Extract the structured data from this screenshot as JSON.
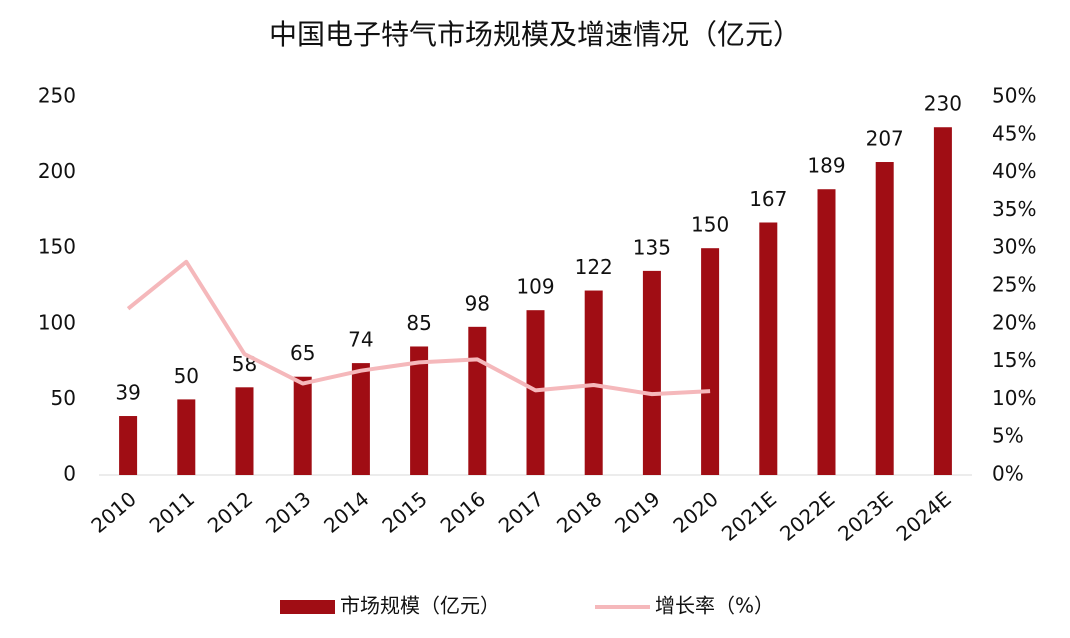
{
  "chart_data": {
    "type": "bar",
    "title": "中国电子特气市场规模及增速情况（亿元）",
    "categories": [
      "2010",
      "2011",
      "2012",
      "2013",
      "2014",
      "2015",
      "2016",
      "2017",
      "2018",
      "2019",
      "2020",
      "2021E",
      "2022E",
      "2023E",
      "2024E"
    ],
    "series": [
      {
        "name": "市场规模（亿元）",
        "type": "bar",
        "color": "#a00d14",
        "values": [
          39,
          50,
          58,
          65,
          74,
          85,
          98,
          109,
          122,
          135,
          150,
          167,
          189,
          207,
          230
        ]
      },
      {
        "name": "增长率（%）",
        "type": "line",
        "axis": "y2",
        "color": "#f5b8bb",
        "values": [
          22,
          28.2,
          16,
          12.1,
          13.8,
          14.9,
          15.3,
          11.2,
          11.9,
          10.7,
          11.1,
          null,
          null,
          null,
          null
        ]
      }
    ],
    "ylim": [
      0,
      250
    ],
    "yticks": [
      0,
      50,
      100,
      150,
      200,
      250
    ],
    "y2lim": [
      0,
      50
    ],
    "y2ticks": [
      {
        "value": 0,
        "label": "0%"
      },
      {
        "value": 5,
        "label": "5%"
      },
      {
        "value": 10,
        "label": "10%"
      },
      {
        "value": 15,
        "label": "15%"
      },
      {
        "value": 20,
        "label": "20%"
      },
      {
        "value": 25,
        "label": "25%"
      },
      {
        "value": 30,
        "label": "30%"
      },
      {
        "value": 35,
        "label": "35%"
      },
      {
        "value": 40,
        "label": "40%"
      },
      {
        "value": 45,
        "label": "45%"
      },
      {
        "value": 50,
        "label": "50%"
      }
    ],
    "grid": false,
    "legend": "bottom"
  }
}
